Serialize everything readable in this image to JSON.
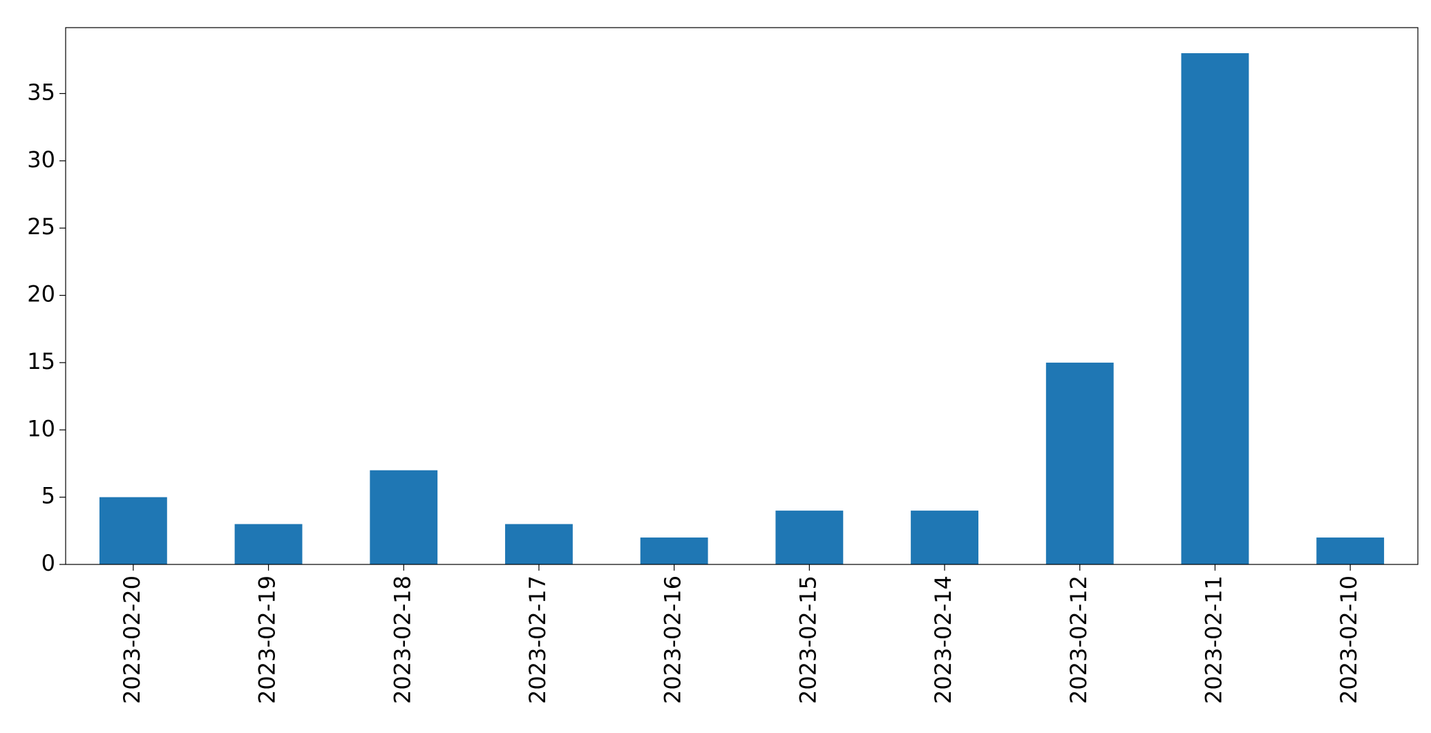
{
  "chart_data": {
    "type": "bar",
    "categories": [
      "2023-02-20",
      "2023-02-19",
      "2023-02-18",
      "2023-02-17",
      "2023-02-16",
      "2023-02-15",
      "2023-02-14",
      "2023-02-12",
      "2023-02-11",
      "2023-02-10"
    ],
    "values": [
      5,
      3,
      7,
      3,
      2,
      4,
      4,
      15,
      38,
      2
    ],
    "color": "#1f77b4",
    "ylim": [
      0,
      39.9
    ],
    "yticks": [
      0,
      5,
      10,
      15,
      20,
      25,
      30,
      35
    ],
    "grid": false
  }
}
